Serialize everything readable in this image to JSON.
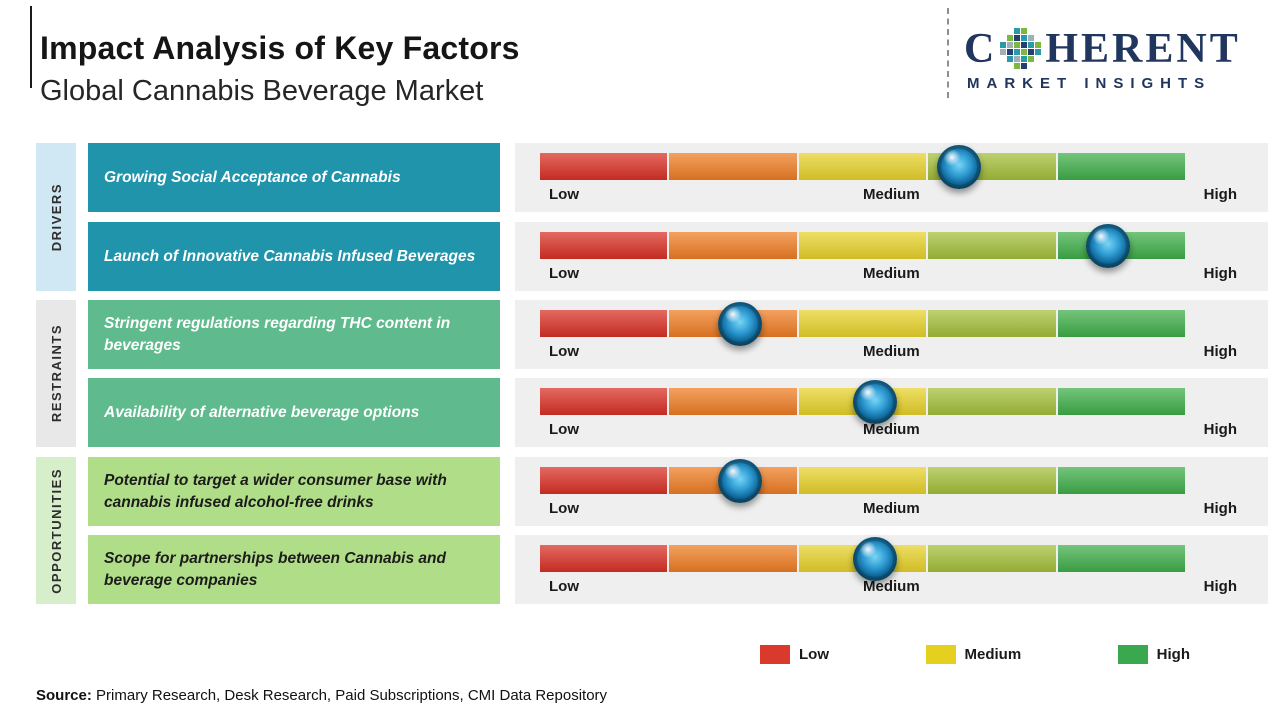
{
  "header": {
    "title": "Impact Analysis of Key Factors",
    "subtitle": "Global Cannabis Beverage Market"
  },
  "logo": {
    "name_start": "C",
    "name_end": "HERENT",
    "tagline": "MARKET INSIGHTS"
  },
  "scale": {
    "low": "Low",
    "medium": "Medium",
    "high": "High"
  },
  "legend": {
    "low": {
      "label": "Low",
      "color": "#d93a2b"
    },
    "medium": {
      "label": "Medium",
      "color": "#e6d01f"
    },
    "high": {
      "label": "High",
      "color": "#3aa84c"
    }
  },
  "source": {
    "prefix": "Source:",
    "text": " Primary Research, Desk Research, Paid Subscriptions, CMI Data Repository"
  },
  "chart_data": {
    "type": "bar",
    "title": "Impact Analysis of Key Factors",
    "subtitle": "Global Cannabis Beverage Market",
    "scale_labels": [
      "Low",
      "Medium",
      "High"
    ],
    "scale_range_pct": [
      0,
      100
    ],
    "segment_colors": [
      "#d93025",
      "#ef7d23",
      "#e7d22a",
      "#a4bf3a",
      "#3fae49"
    ],
    "groups": [
      {
        "group": "DRIVERS",
        "factors": [
          {
            "label": "Growing Social Acceptance of Cannabis",
            "impact": "Medium-High",
            "position_pct": 65
          },
          {
            "label": "Launch of Innovative Cannabis Infused Beverages",
            "impact": "High",
            "position_pct": 88
          }
        ]
      },
      {
        "group": "RESTRAINTS",
        "factors": [
          {
            "label": "Stringent regulations regarding THC content in beverages",
            "impact": "Low-Medium",
            "position_pct": 31
          },
          {
            "label": "Availability of alternative beverage options",
            "impact": "Medium",
            "position_pct": 52
          }
        ]
      },
      {
        "group": "OPPORTUNITIES",
        "factors": [
          {
            "label": "Potential to target a wider consumer base with cannabis infused alcohol-free drinks",
            "impact": "Low-Medium",
            "position_pct": 31
          },
          {
            "label": "Scope for partnerships between Cannabis and beverage companies",
            "impact": "Medium",
            "position_pct": 52
          }
        ]
      }
    ]
  }
}
